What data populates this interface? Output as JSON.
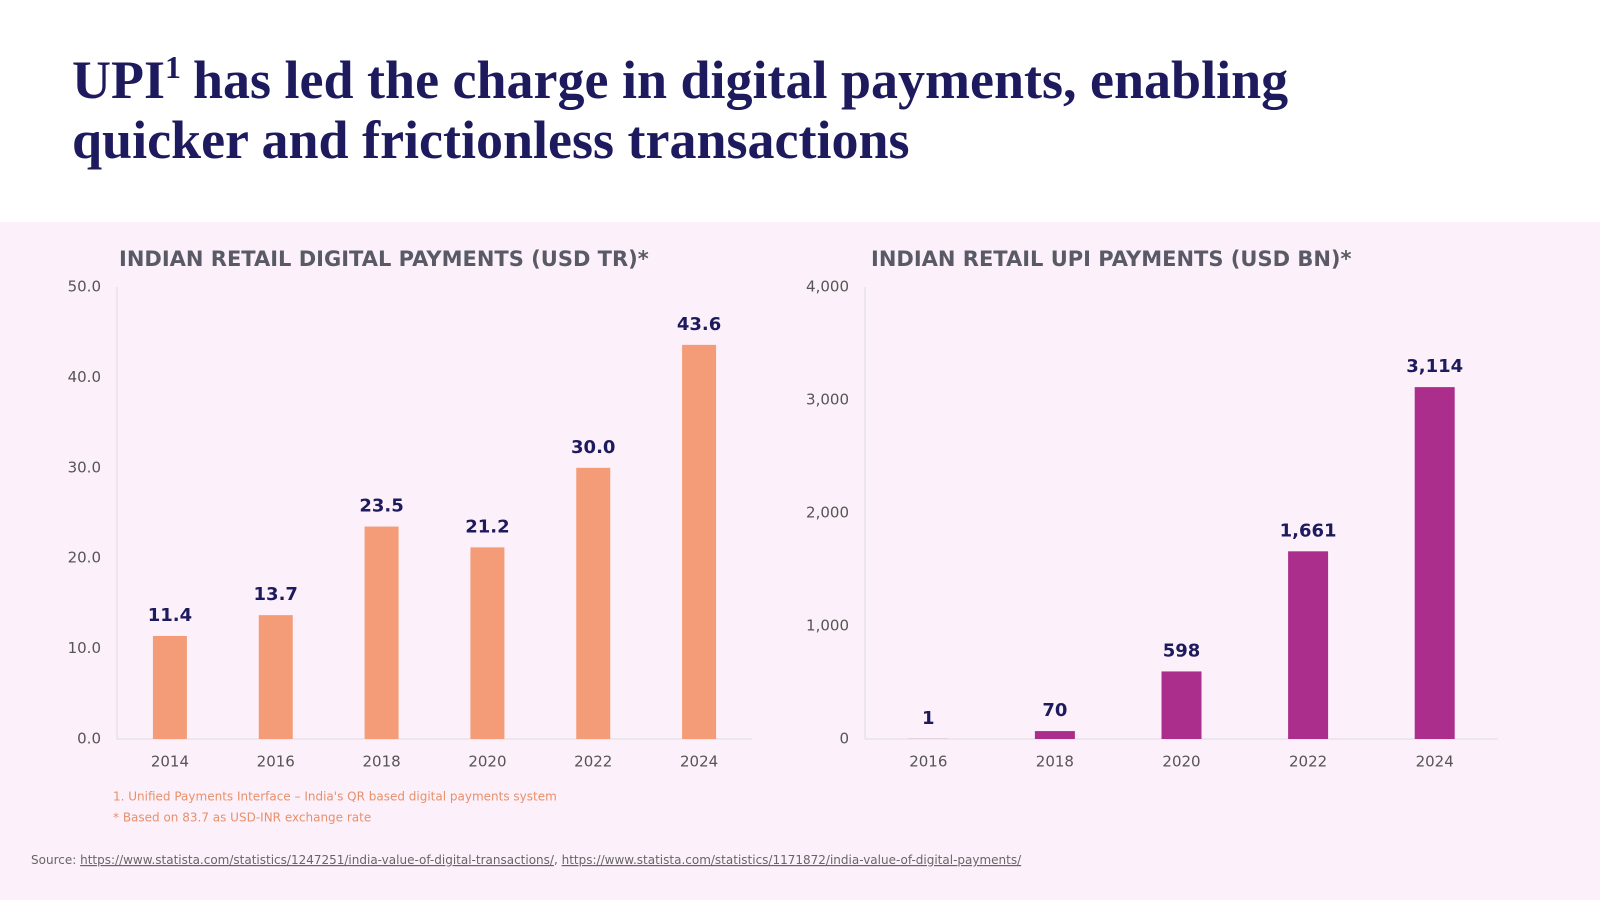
{
  "header": {
    "title": {
      "lead": "UPI",
      "sup": "1",
      "rest": "has led the charge in digital payments, enabling",
      "line2": "quicker and frictionless transactions"
    }
  },
  "chart_data": [
    {
      "type": "bar",
      "title": "INDIAN RETAIL DIGITAL PAYMENTS (USD TR)*",
      "categories": [
        "2014",
        "2016",
        "2018",
        "2020",
        "2022",
        "2024"
      ],
      "values": [
        11.4,
        13.7,
        23.5,
        21.2,
        30.0,
        43.6
      ],
      "value_labels": [
        "11.4",
        "13.7",
        "23.5",
        "21.2",
        "30.0",
        "43.6"
      ],
      "color": "#f49c78",
      "ylim": [
        0,
        50
      ],
      "yticks": [
        {
          "value": 0,
          "label": "0.0"
        },
        {
          "value": 10,
          "label": "10.0"
        },
        {
          "value": 20,
          "label": "20.0"
        },
        {
          "value": 30,
          "label": "30.0"
        },
        {
          "value": 40,
          "label": "40.0"
        },
        {
          "value": 50,
          "label": "50.0"
        }
      ]
    },
    {
      "type": "bar",
      "title": "INDIAN RETAIL UPI PAYMENTS (USD BN)*",
      "categories": [
        "2016",
        "2018",
        "2020",
        "2022",
        "2024"
      ],
      "values": [
        1,
        70,
        598,
        1661,
        3114
      ],
      "value_labels": [
        "1",
        "70",
        "598",
        "1,661",
        "3,114"
      ],
      "color": "#ab2e8c",
      "ylim": [
        0,
        4000
      ],
      "yticks": [
        0,
        {
          "value": 1000,
          "label": "1,000"
        },
        {
          "value": 2000,
          "label": "2,000"
        },
        {
          "value": 3000,
          "label": "3,000"
        },
        {
          "value": 4000,
          "label": "4,000"
        }
      ]
    }
  ],
  "footnotes": [
    "1. Unified Payments Interface – India's QR based digital payments system",
    "* Based on 83.7 as USD-INR exchange rate"
  ],
  "source": {
    "label": "Source:",
    "links": [
      "https://www.statista.com/statistics/1247251/india-value-of-digital-transactions/",
      "https://www.statista.com/statistics/1171872/india-value-of-digital-payments/"
    ]
  }
}
